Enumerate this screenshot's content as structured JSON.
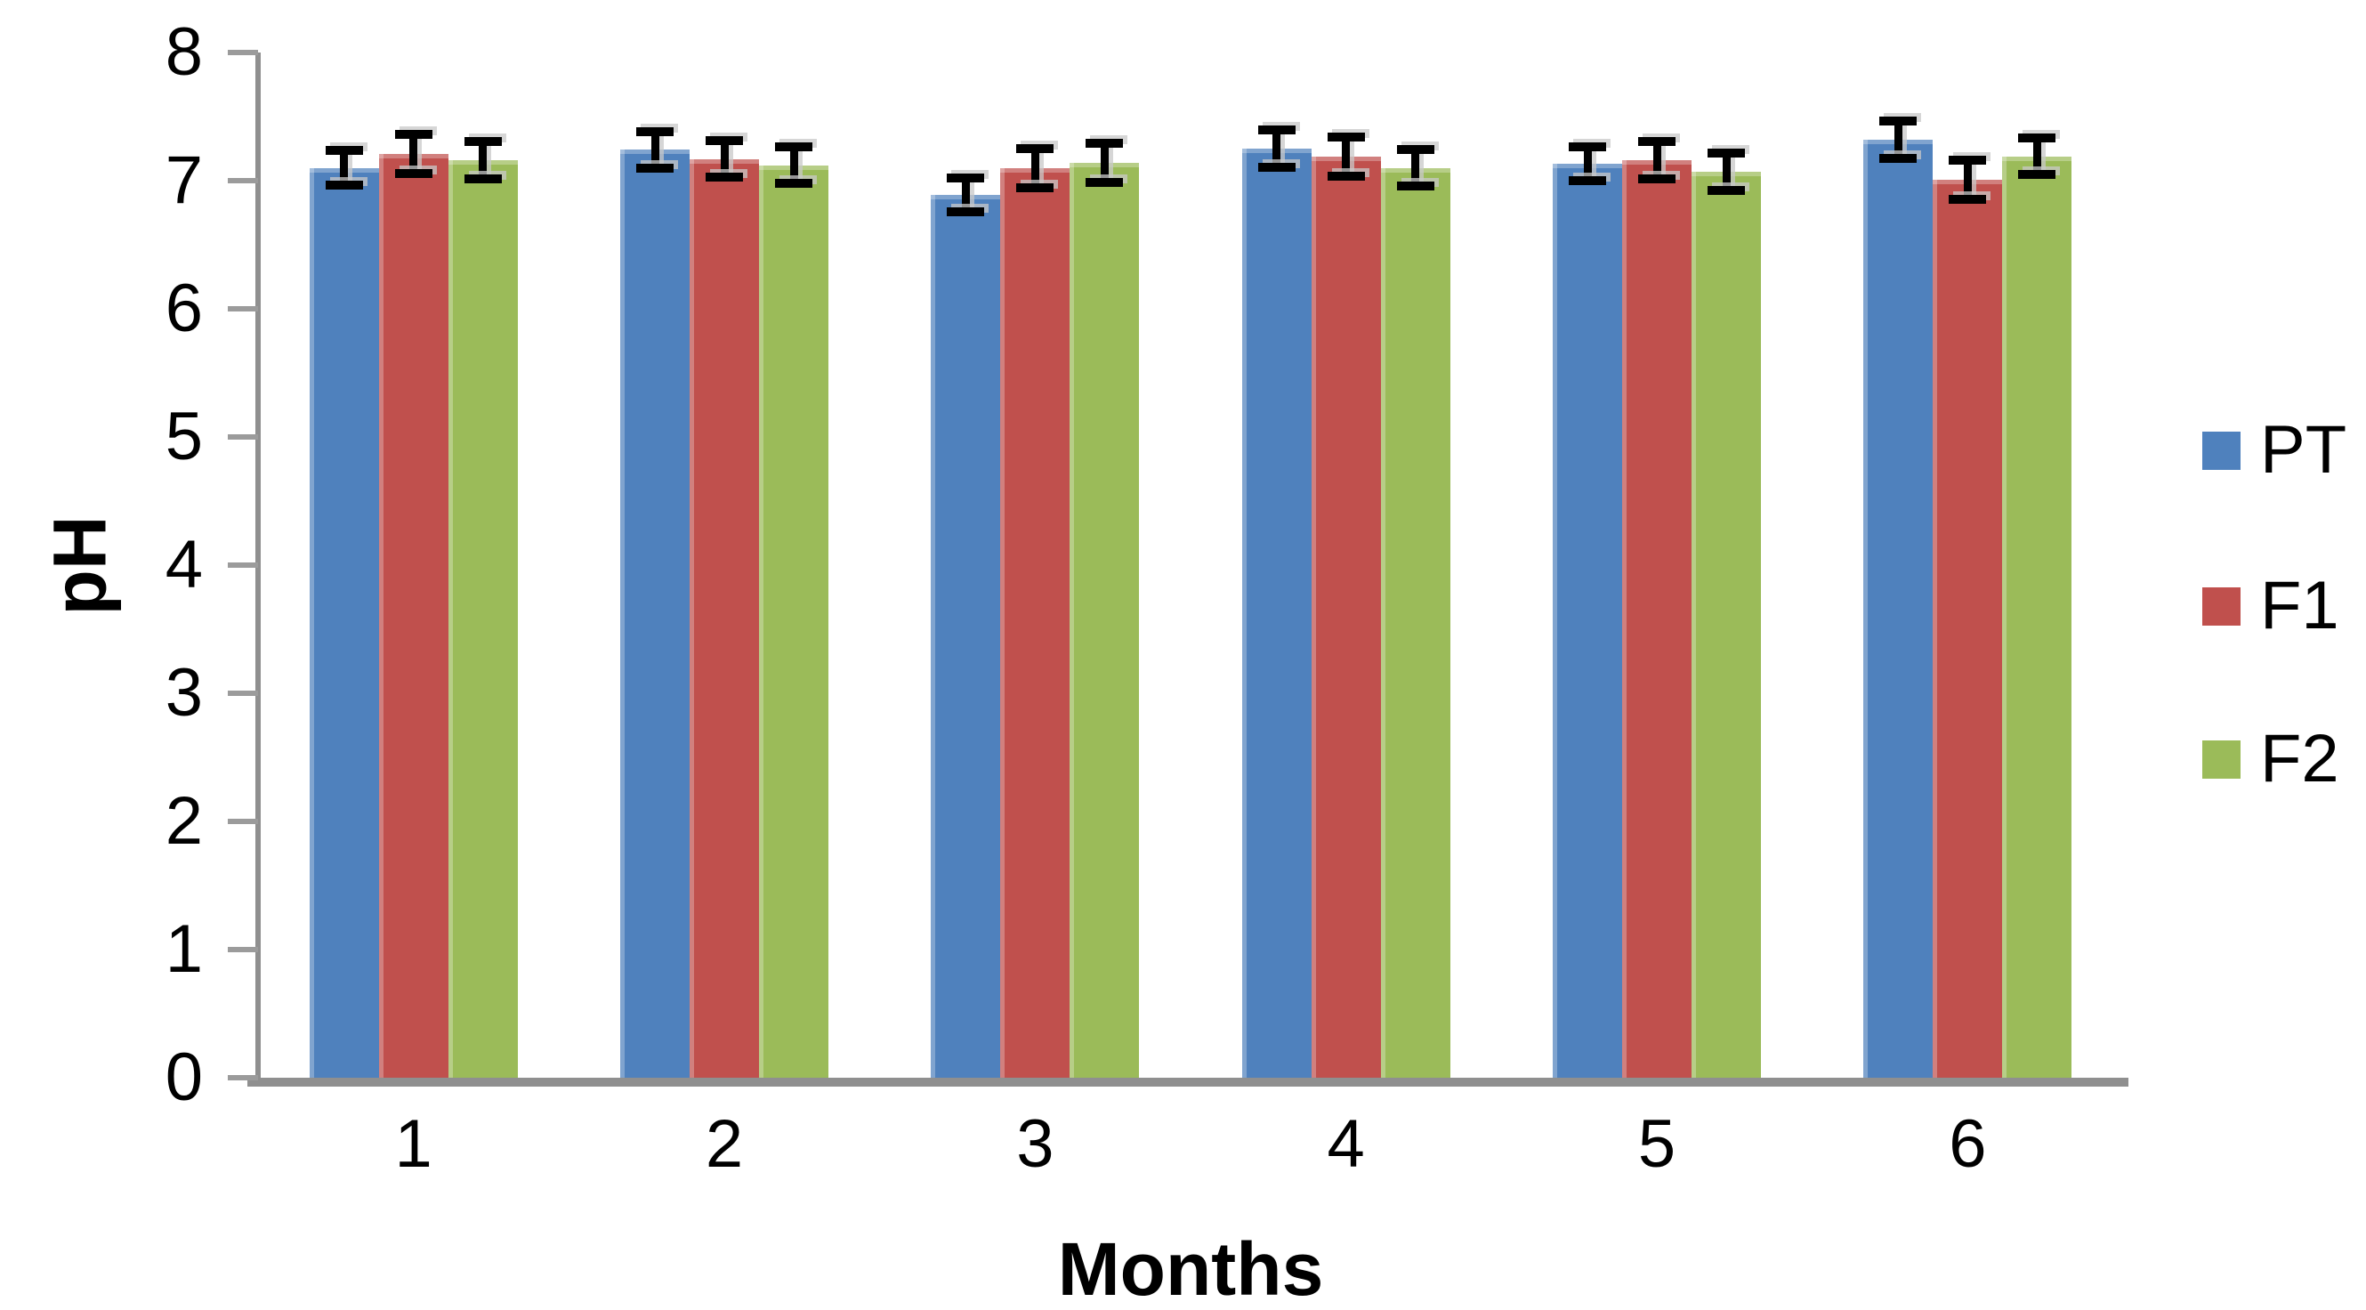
{
  "chart_data": {
    "type": "bar",
    "title": "",
    "xlabel": "Months",
    "ylabel": "pH",
    "categories": [
      "1",
      "2",
      "3",
      "4",
      "5",
      "6"
    ],
    "ylim": [
      0,
      8
    ],
    "yticks": [
      0,
      1,
      2,
      3,
      4,
      5,
      6,
      7,
      8
    ],
    "grid": false,
    "legend_position": "right",
    "error_bars": true,
    "axis_color": "#8f8f8f",
    "error_bar_color": "#000000",
    "series": [
      {
        "name": "PT",
        "color": "#4F81BD",
        "values": [
          7.1,
          7.24,
          6.89,
          7.25,
          7.13,
          7.32
        ],
        "errors": [
          0.14,
          0.15,
          0.14,
          0.15,
          0.14,
          0.15
        ]
      },
      {
        "name": "F1",
        "color": "#C0504D",
        "values": [
          7.21,
          7.17,
          7.1,
          7.19,
          7.16,
          7.01
        ],
        "errors": [
          0.16,
          0.15,
          0.16,
          0.16,
          0.15,
          0.16
        ]
      },
      {
        "name": "F2",
        "color": "#9BBB59",
        "values": [
          7.16,
          7.12,
          7.14,
          7.1,
          7.07,
          7.19
        ],
        "errors": [
          0.15,
          0.15,
          0.16,
          0.15,
          0.15,
          0.15
        ]
      }
    ]
  }
}
